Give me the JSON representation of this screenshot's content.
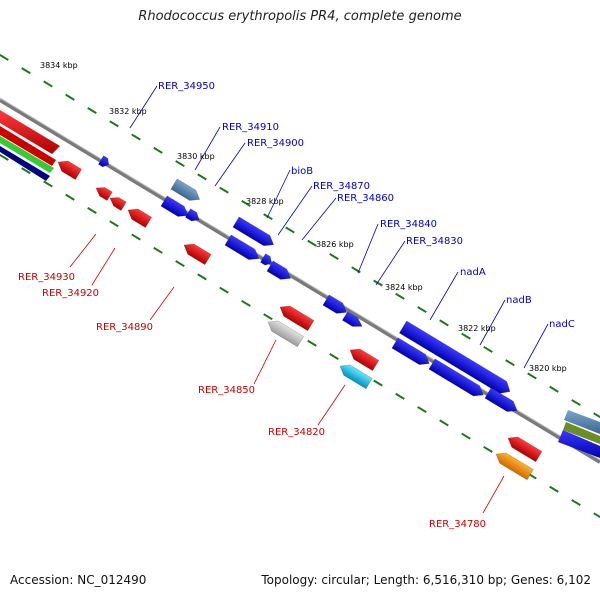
{
  "title": "Rhodococcus erythropolis PR4, complete genome",
  "footer": {
    "accession": "Accession: NC_012490",
    "summary": "Topology: circular; Length: 6,516,310 bp; Genes: 6,102"
  },
  "ruler_labels": [
    "3834 kbp",
    "3832 kbp",
    "3830 kbp",
    "3828 kbp",
    "3826 kbp",
    "3824 kbp",
    "3822 kbp",
    "3820 kbp"
  ],
  "forward_gene_labels": [
    "RER_34950",
    "RER_34910",
    "RER_34900",
    "bioB",
    "RER_34870",
    "RER_34860",
    "RER_34840",
    "RER_34830",
    "nadA",
    "nadB",
    "nadC"
  ],
  "reverse_gene_labels": [
    "RER_34930",
    "RER_34920",
    "RER_34890",
    "RER_34850",
    "RER_34820",
    "RER_34780"
  ],
  "colors": {
    "forward_gene": "#0000ee",
    "reverse_gene": "#ee0000",
    "backbone": "#7a7a7a",
    "ruler_ticks": "#1a7a1a",
    "forward_label": "#0000cc",
    "reverse_label": "#cc0000"
  }
}
